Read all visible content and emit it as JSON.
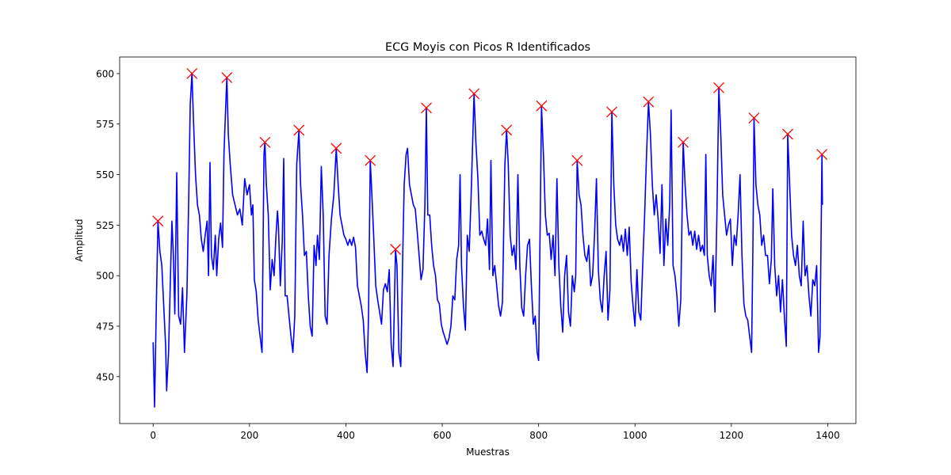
{
  "chart_data": {
    "type": "line",
    "title": "ECG Moyis con Picos R Identificados",
    "xlabel": "Muestras",
    "ylabel": "Amplitud",
    "xlim": [
      -69.45,
      1458.45
    ],
    "ylim": [
      426.8,
      608.2
    ],
    "xticks": [
      0,
      200,
      400,
      600,
      800,
      1000,
      1200,
      1400
    ],
    "yticks": [
      450,
      475,
      500,
      525,
      550,
      575,
      600
    ],
    "series": [
      {
        "color": "#0000ff",
        "x": [
          0,
          3,
          7,
          10,
          14,
          18,
          22,
          26,
          28,
          32,
          36,
          39,
          42,
          45,
          49,
          53,
          57,
          61,
          65,
          70,
          74,
          77,
          80.6,
          84,
          88,
          92,
          96,
          100,
          104,
          108,
          112,
          115,
          118,
          121,
          125,
          129,
          132,
          136,
          140,
          144,
          147,
          150,
          153,
          156,
          160,
          165,
          170,
          175,
          180,
          185,
          190,
          195,
          200,
          204,
          207,
          210,
          214,
          218,
          222,
          226,
          230,
          232,
          235,
          239,
          243,
          247,
          251,
          255,
          258,
          260,
          264,
          268,
          271,
          274,
          278,
          282,
          286,
          290,
          294,
          298,
          302.6,
          306,
          310,
          314,
          318,
          322,
          326,
          330,
          334,
          338,
          341,
          345,
          349,
          353,
          357,
          361,
          365,
          370,
          375,
          380,
          384,
          388,
          392,
          396,
          400,
          404,
          408,
          412,
          416,
          420,
          424,
          428,
          432,
          436,
          440,
          444,
          447,
          450.6,
          454,
          458,
          462,
          466,
          470,
          474,
          478,
          482,
          486,
          490,
          494,
          498,
          503,
          506,
          510,
          514,
          518,
          521,
          525,
          528,
          532,
          536,
          540,
          544,
          548,
          552,
          556,
          560,
          564,
          567,
          570,
          574,
          578,
          582,
          586,
          590,
          594,
          598,
          602,
          606,
          610,
          614,
          618,
          622,
          626,
          630,
          634,
          637,
          640,
          644,
          648,
          652,
          656,
          660,
          666,
          670,
          674,
          678,
          682,
          686,
          690,
          694,
          698,
          701,
          705,
          709,
          713,
          717,
          721,
          725,
          730,
          733.5,
          737,
          741,
          745,
          749,
          753,
          757,
          761,
          765,
          769,
          773,
          777,
          781,
          785,
          789,
          793,
          797,
          800,
          806,
          810,
          814,
          818,
          822,
          826,
          830,
          834,
          838,
          842,
          846,
          850,
          854,
          858,
          862,
          866,
          870,
          874,
          877,
          880,
          884,
          888,
          892,
          896,
          900,
          904,
          908,
          912,
          916,
          920,
          924,
          928,
          932,
          936,
          940,
          944,
          948,
          952,
          956,
          960,
          964,
          968,
          972,
          976,
          980,
          984,
          988,
          992,
          996,
          1000,
          1004,
          1008,
          1012,
          1016,
          1020,
          1024,
          1028,
          1032,
          1036,
          1040,
          1044,
          1048,
          1052,
          1056,
          1060,
          1064,
          1068,
          1072,
          1075,
          1079,
          1083,
          1087,
          1091,
          1095,
          1100,
          1104,
          1108,
          1112,
          1116,
          1120,
          1124,
          1128,
          1132,
          1136,
          1140,
          1144,
          1147,
          1150,
          1154,
          1158,
          1162,
          1166,
          1170,
          1174,
          1178,
          1182,
          1186,
          1190,
          1194,
          1198,
          1202,
          1206,
          1210,
          1214,
          1218,
          1222,
          1226,
          1230,
          1234,
          1238,
          1242,
          1245,
          1247,
          1251,
          1255,
          1259,
          1263,
          1267,
          1271,
          1275,
          1279,
          1283,
          1286,
          1290,
          1294,
          1298,
          1302,
          1306,
          1310,
          1314,
          1317,
          1321,
          1325,
          1329,
          1333,
          1337,
          1341,
          1345,
          1349,
          1353,
          1357,
          1361,
          1365,
          1369,
          1373,
          1377,
          1381,
          1384,
          1388,
          1389
        ],
        "values": [
          467,
          435,
          490,
          527,
          512,
          505,
          485,
          465,
          443,
          462,
          500,
          527,
          510,
          481,
          551,
          480,
          476,
          494,
          462,
          490,
          540,
          585,
          600,
          575,
          550,
          535,
          530,
          518,
          512,
          520,
          527,
          500,
          556,
          510,
          503,
          520,
          500,
          518,
          526,
          514,
          560,
          580,
          598,
          570,
          555,
          540,
          535,
          530,
          533,
          525,
          548,
          540,
          545,
          530,
          535,
          498,
          492,
          478,
          470,
          462,
          560,
          566,
          545,
          530,
          493,
          508,
          500,
          520,
          532,
          525,
          495,
          517,
          558,
          490,
          490,
          480,
          470,
          462,
          480,
          555,
          572,
          545,
          530,
          510,
          512,
          490,
          475,
          470,
          515,
          505,
          520,
          508,
          554,
          530,
          480,
          476,
          510,
          528,
          540,
          563,
          545,
          530,
          525,
          520,
          518,
          515,
          518,
          515,
          519,
          514,
          495,
          490,
          485,
          478,
          462,
          452,
          480,
          557,
          540,
          518,
          495,
          488,
          482,
          476,
          493,
          496,
          492,
          503,
          466,
          455,
          513,
          505,
          462,
          455,
          510,
          545,
          560,
          563,
          545,
          540,
          535,
          533,
          522,
          510,
          498,
          503,
          535,
          583,
          530,
          530,
          515,
          505,
          500,
          488,
          486,
          476,
          472,
          469,
          466,
          469,
          475,
          490,
          488,
          508,
          515,
          550,
          505,
          485,
          473,
          520,
          512,
          540,
          590,
          565,
          548,
          520,
          522,
          518,
          515,
          528,
          503,
          557,
          500,
          505,
          495,
          485,
          480,
          487,
          555,
          572,
          555,
          520,
          510,
          515,
          503,
          550,
          505,
          484,
          480,
          500,
          515,
          518,
          495,
          476,
          480,
          462,
          458,
          584,
          560,
          530,
          520,
          521,
          508,
          520,
          500,
          548,
          505,
          485,
          472,
          500,
          510,
          482,
          475,
          500,
          492,
          500,
          557,
          540,
          535,
          520,
          510,
          507,
          515,
          495,
          500,
          520,
          548,
          503,
          488,
          482,
          500,
          512,
          478,
          493,
          581,
          545,
          525,
          518,
          515,
          520,
          512,
          523,
          510,
          524,
          497,
          485,
          475,
          503,
          482,
          478,
          505,
          530,
          560,
          586,
          570,
          545,
          530,
          540,
          528,
          511,
          545,
          505,
          528,
          515,
          535,
          582,
          505,
          500,
          490,
          475,
          488,
          566,
          545,
          530,
          520,
          522,
          515,
          522,
          513,
          520,
          512,
          515,
          510,
          560,
          510,
          500,
          495,
          510,
          482,
          530,
          593,
          570,
          540,
          530,
          520,
          525,
          528,
          505,
          520,
          515,
          530,
          550,
          510,
          486,
          480,
          478,
          470,
          462,
          520,
          578,
          545,
          535,
          530,
          515,
          520,
          510,
          510,
          496,
          508,
          543,
          505,
          490,
          500,
          482,
          498,
          480,
          465,
          570,
          545,
          520,
          510,
          505,
          515,
          500,
          495,
          527,
          500,
          505,
          490,
          480,
          498,
          495,
          505,
          462,
          470,
          560,
          535
        ]
      }
    ],
    "peaks": {
      "color": "#ff0000",
      "marker": "x",
      "x": [
        10,
        80.6,
        153,
        232,
        302.6,
        380,
        450.6,
        503,
        567,
        666,
        733.5,
        806,
        880,
        952,
        1028,
        1100,
        1174,
        1247,
        1317,
        1388
      ],
      "values": [
        527,
        600,
        598,
        566,
        572,
        563,
        557,
        513,
        583,
        590,
        572,
        584,
        557,
        581,
        586,
        566,
        593,
        578,
        570,
        560
      ]
    }
  }
}
